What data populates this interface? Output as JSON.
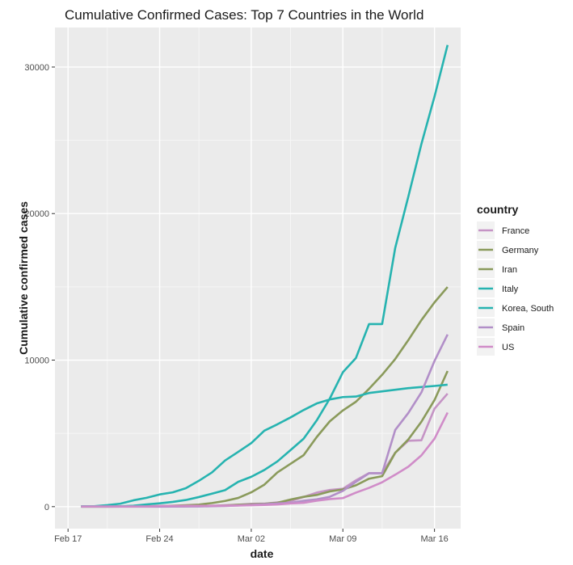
{
  "chart_data": {
    "type": "line",
    "title": "Cumulative Confirmed Cases: Top 7 Countries in the World",
    "xlabel": "date",
    "ylabel": "Cumulative confirmed cases",
    "xlim": [
      "2020-02-16",
      "2020-03-18"
    ],
    "ylim": [
      -1500,
      32700
    ],
    "x_ticks": [
      {
        "date": "2020-02-17",
        "label": "Feb 17"
      },
      {
        "date": "2020-02-24",
        "label": "Feb 24"
      },
      {
        "date": "2020-03-02",
        "label": "Mar 02"
      },
      {
        "date": "2020-03-09",
        "label": "Mar 09"
      },
      {
        "date": "2020-03-16",
        "label": "Mar 16"
      }
    ],
    "y_ticks": [
      0,
      10000,
      20000,
      30000
    ],
    "grid": true,
    "legend": {
      "title": "country",
      "position": "right"
    },
    "x": [
      "2020-02-18",
      "2020-02-19",
      "2020-02-20",
      "2020-02-21",
      "2020-02-22",
      "2020-02-23",
      "2020-02-24",
      "2020-02-25",
      "2020-02-26",
      "2020-02-27",
      "2020-02-28",
      "2020-02-29",
      "2020-03-01",
      "2020-03-02",
      "2020-03-03",
      "2020-03-04",
      "2020-03-05",
      "2020-03-06",
      "2020-03-07",
      "2020-03-08",
      "2020-03-09",
      "2020-03-10",
      "2020-03-11",
      "2020-03-12",
      "2020-03-13",
      "2020-03-14",
      "2020-03-15",
      "2020-03-16",
      "2020-03-17"
    ],
    "series": [
      {
        "name": "France",
        "color": "#c594c5",
        "values": [
          12,
          12,
          12,
          12,
          12,
          12,
          12,
          14,
          18,
          38,
          57,
          100,
          130,
          191,
          204,
          288,
          380,
          656,
          957,
          1136,
          1219,
          1794,
          2293,
          2293,
          3681,
          4496,
          4532,
          6683,
          7715
        ]
      },
      {
        "name": "Germany",
        "color": "#8a9a5b",
        "values": [
          16,
          16,
          16,
          16,
          16,
          16,
          16,
          17,
          27,
          46,
          48,
          79,
          130,
          159,
          196,
          262,
          482,
          670,
          799,
          1040,
          1176,
          1457,
          1908,
          2078,
          3675,
          4585,
          5795,
          7272,
          9257
        ]
      },
      {
        "name": "Iran",
        "color": "#8a9a5b",
        "values": [
          0,
          0,
          2,
          5,
          18,
          28,
          43,
          61,
          95,
          139,
          245,
          388,
          593,
          978,
          1501,
          2336,
          2922,
          3513,
          4747,
          5823,
          6566,
          7161,
          8042,
          9000,
          10075,
          11364,
          12729,
          13938,
          14991
        ]
      },
      {
        "name": "Italy",
        "color": "#26b3b0",
        "values": [
          3,
          3,
          3,
          20,
          62,
          155,
          229,
          322,
          453,
          655,
          888,
          1128,
          1694,
          2036,
          2502,
          3089,
          3858,
          4636,
          5883,
          7375,
          9172,
          10149,
          12462,
          12462,
          17660,
          21157,
          24747,
          27980,
          31506
        ]
      },
      {
        "name": "Korea, South",
        "color": "#26b3b0",
        "values": [
          31,
          31,
          104,
          204,
          433,
          602,
          833,
          977,
          1261,
          1766,
          2337,
          3150,
          3736,
          4335,
          5186,
          5621,
          6088,
          6593,
          7041,
          7314,
          7478,
          7513,
          7755,
          7869,
          7979,
          8086,
          8162,
          8236,
          8320
        ]
      },
      {
        "name": "Spain",
        "color": "#b28fc8",
        "values": [
          2,
          2,
          2,
          2,
          2,
          2,
          2,
          6,
          13,
          15,
          32,
          45,
          84,
          120,
          165,
          222,
          259,
          400,
          500,
          673,
          1073,
          1695,
          2277,
          2277,
          5232,
          6391,
          7798,
          9942,
          11748
        ]
      },
      {
        "name": "US",
        "color": "#d08cc8",
        "values": [
          13,
          13,
          13,
          15,
          15,
          15,
          51,
          51,
          57,
          58,
          60,
          68,
          74,
          98,
          118,
          149,
          217,
          262,
          402,
          518,
          583,
          959,
          1281,
          1663,
          2179,
          2727,
          3499,
          4632,
          6421
        ]
      }
    ]
  }
}
